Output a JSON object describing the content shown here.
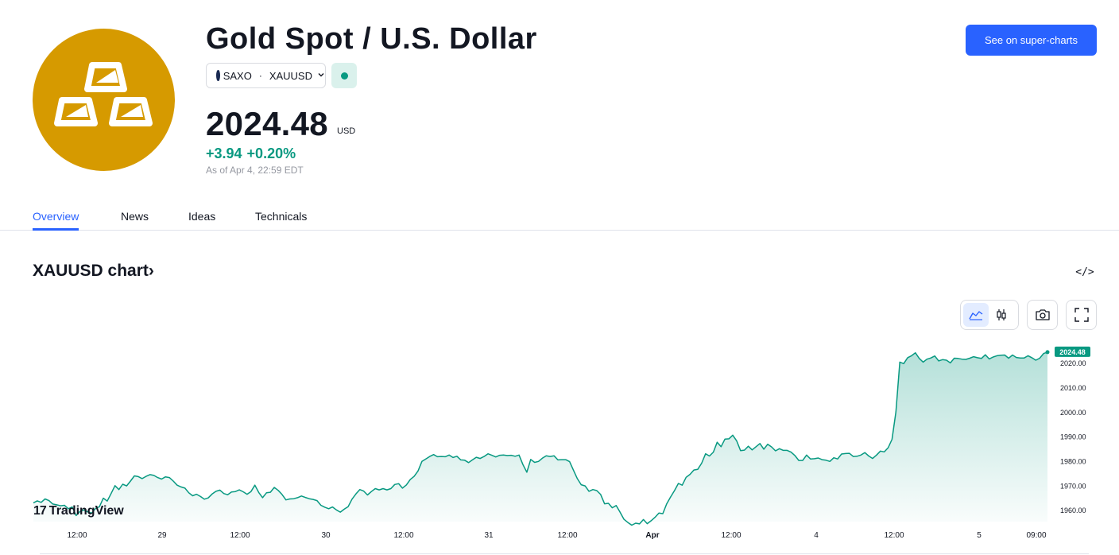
{
  "header": {
    "title": "Gold Spot / U.S. Dollar",
    "logo_icon": "gold-bars-icon",
    "exchange": "SAXO",
    "symbol": "XAUUSD",
    "market_status_color": "#089981",
    "see_button_label": "See on super-charts"
  },
  "quote": {
    "price": "2024.48",
    "currency": "USD",
    "change": "+3.94",
    "change_percent": "+0.20%",
    "as_of": "As of Apr 4, 22:59 EDT",
    "change_color": "#089981"
  },
  "tabs": [
    {
      "label": "Overview",
      "active": true
    },
    {
      "label": "News",
      "active": false
    },
    {
      "label": "Ideas",
      "active": false
    },
    {
      "label": "Technicals",
      "active": false
    }
  ],
  "chart_section": {
    "heading": "XAUUSD chart",
    "heading_chevron": "›",
    "embed_icon": "</>",
    "tools": [
      "area-chart-icon",
      "candles-icon",
      "camera-icon",
      "fullscreen-icon"
    ],
    "brand": "TradingView",
    "brand_mark": "17"
  },
  "chart_data": {
    "type": "area",
    "title": "",
    "xlabel": "",
    "ylabel": "",
    "line_color": "#089981",
    "ylim": [
      1952,
      2028
    ],
    "x_ticks": [
      "12:00",
      "29",
      "12:00",
      "30",
      "12:00",
      "31",
      "12:00",
      "Apr",
      "12:00",
      "4",
      "12:00",
      "5",
      "09:00"
    ],
    "y_ticks": [
      "1960.00",
      "1970.00",
      "1980.00",
      "1990.00",
      "2000.00",
      "2010.00",
      "2020.00"
    ],
    "last_value_label": "2024.48",
    "series": [
      {
        "values": [
          1963.0,
          1963.8,
          1963.2,
          1964.6,
          1963.9,
          1962.5,
          1962.2,
          1961.8,
          1962.0,
          1960.6,
          1961.3,
          1957.8,
          1959.5,
          1960.1,
          1959.3,
          1958.8,
          1960.7,
          1961.4,
          1964.9,
          1963.7,
          1966.8,
          1970.0,
          1968.4,
          1970.6,
          1969.9,
          1971.9,
          1974.0,
          1973.7,
          1972.9,
          1973.8,
          1974.5,
          1974.2,
          1973.3,
          1972.7,
          1973.6,
          1973.3,
          1971.9,
          1970.2,
          1969.5,
          1969.0,
          1967.1,
          1965.9,
          1966.5,
          1965.6,
          1964.5,
          1965.0,
          1966.6,
          1967.7,
          1968.2,
          1966.8,
          1966.3,
          1967.4,
          1967.6,
          1968.3,
          1967.5,
          1966.5,
          1967.6,
          1970.2,
          1967.2,
          1965.1,
          1967.1,
          1967.3,
          1969.3,
          1968.1,
          1966.4,
          1964.2,
          1964.6,
          1964.7,
          1965.1,
          1965.8,
          1965.2,
          1964.7,
          1964.4,
          1963.9,
          1962.0,
          1961.2,
          1960.6,
          1961.3,
          1960.1,
          1959.2,
          1960.4,
          1961.4,
          1964.5,
          1966.6,
          1968.4,
          1967.8,
          1966.2,
          1967.6,
          1968.8,
          1968.3,
          1968.8,
          1968.3,
          1968.8,
          1970.5,
          1970.8,
          1969.0,
          1970.3,
          1972.5,
          1973.8,
          1976.0,
          1979.9,
          1980.9,
          1981.9,
          1982.7,
          1981.8,
          1981.9,
          1981.8,
          1982.5,
          1981.5,
          1982.0,
          1980.5,
          1980.4,
          1979.4,
          1980.5,
          1981.6,
          1981.1,
          1981.9,
          1983.0,
          1982.4,
          1981.7,
          1982.4,
          1982.5,
          1982.3,
          1982.4,
          1982.0,
          1982.5,
          1978.6,
          1975.5,
          1980.7,
          1979.5,
          1979.9,
          1981.2,
          1982.2,
          1981.9,
          1982.2,
          1980.5,
          1980.6,
          1980.6,
          1979.8,
          1976.3,
          1972.9,
          1970.4,
          1969.9,
          1967.7,
          1968.4,
          1968.0,
          1966.4,
          1962.6,
          1962.8,
          1961.0,
          1961.9,
          1959.2,
          1956.3,
          1955.0,
          1953.9,
          1954.7,
          1954.4,
          1956.2,
          1954.5,
          1955.7,
          1957.1,
          1958.8,
          1958.6,
          1962.6,
          1965.4,
          1968.0,
          1970.9,
          1970.2,
          1973.4,
          1974.6,
          1976.4,
          1976.7,
          1979.2,
          1983.0,
          1982.1,
          1983.7,
          1987.7,
          1985.9,
          1989.0,
          1989.1,
          1990.6,
          1988.3,
          1984.3,
          1984.5,
          1986.1,
          1984.6,
          1985.9,
          1987.2,
          1984.9,
          1986.9,
          1985.8,
          1984.2,
          1985.1,
          1984.4,
          1984.4,
          1983.7,
          1982.3,
          1980.3,
          1980.3,
          1982.5,
          1980.9,
          1981.0,
          1981.3,
          1980.6,
          1980.4,
          1979.9,
          1981.4,
          1980.9,
          1982.9,
          1983.1,
          1983.2,
          1981.9,
          1982.0,
          1982.5,
          1983.5,
          1982.1,
          1981.1,
          1982.5,
          1984.1,
          1983.8,
          1985.5,
          1988.9,
          2000.1,
          2020.4,
          2019.8,
          2022.2,
          2023.0,
          2024.2,
          2021.9,
          2020.4,
          2021.6,
          2022.1,
          2022.9,
          2020.9,
          2021.4,
          2021.2,
          2020.1,
          2022.0,
          2021.9,
          2021.6,
          2021.5,
          2022.0,
          2022.6,
          2022.2,
          2021.9,
          2023.4,
          2021.7,
          2022.5,
          2023.0,
          2023.2,
          2023.3,
          2022.0,
          2023.3,
          2022.3,
          2022.1,
          2022.1,
          2023.0,
          2022.2,
          2021.2,
          2022.0,
          2023.9,
          2024.48
        ]
      }
    ]
  }
}
